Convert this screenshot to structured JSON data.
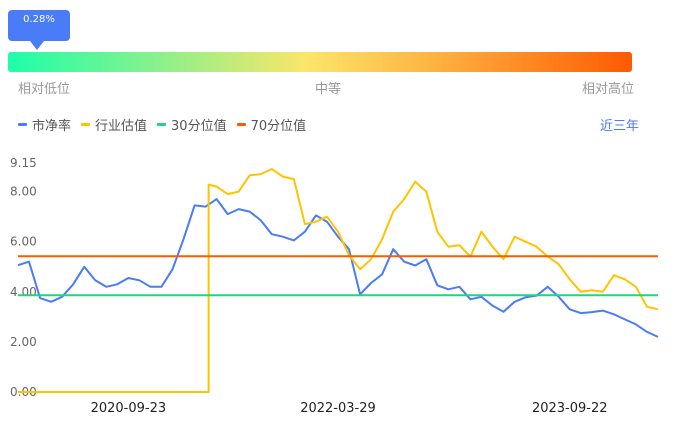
{
  "gauge": {
    "percentile_label": "0.28%",
    "percentile": 0.28,
    "low_label": "相对低位",
    "mid_label": "中等",
    "high_label": "相对高位"
  },
  "legend": [
    {
      "label": "市净率",
      "color": "#4a7cf7"
    },
    {
      "label": "行业估值",
      "color": "#ffc400"
    },
    {
      "label": "30分位值",
      "color": "#1fd67f"
    },
    {
      "label": "70分位值",
      "color": "#ff5a00"
    }
  ],
  "period_button": "近三年",
  "chart_data": {
    "type": "line",
    "title": "",
    "xlabel": "",
    "ylabel": "",
    "ylim": [
      0,
      9.15
    ],
    "y_ticks": [
      "0.00",
      "2.00",
      "4.00",
      "6.00",
      "8.00",
      "9.15"
    ],
    "y_tick_values": [
      0,
      2,
      4,
      6,
      8,
      9.15
    ],
    "x_ticks": [
      {
        "label": "2020-09-23",
        "index": 10
      },
      {
        "label": "2022-03-29",
        "index": 29
      },
      {
        "label": "2023-09-22",
        "index": 50
      }
    ],
    "grid": false,
    "legend_position": "top-left",
    "series": [
      {
        "name": "市净率",
        "color": "#4a7cf7",
        "values": [
          5.06,
          5.2,
          3.75,
          3.6,
          3.8,
          4.3,
          5.0,
          4.46,
          4.2,
          4.3,
          4.55,
          4.46,
          4.2,
          4.2,
          4.9,
          6.1,
          7.45,
          7.4,
          7.7,
          7.1,
          7.3,
          7.2,
          6.85,
          6.3,
          6.2,
          6.05,
          6.4,
          7.05,
          6.8,
          6.2,
          5.7,
          3.9,
          4.35,
          4.7,
          5.7,
          5.2,
          5.05,
          5.3,
          4.26,
          4.1,
          4.2,
          3.7,
          3.8,
          3.45,
          3.2,
          3.6,
          3.78,
          3.85,
          4.2,
          3.8,
          3.3,
          3.15,
          3.19,
          3.25,
          3.1,
          2.9,
          2.7,
          2.4,
          2.2
        ]
      },
      {
        "name": "行业估值",
        "color": "#ffc400",
        "values": [
          0,
          0,
          0,
          0,
          0,
          0,
          0,
          0,
          0,
          0,
          0,
          0,
          0,
          0,
          0,
          0,
          0,
          0,
          8.2,
          7.9,
          8.0,
          8.65,
          8.7,
          8.9,
          8.6,
          8.5,
          6.7,
          6.8,
          7.0,
          6.4,
          5.46,
          4.9,
          5.3,
          6.1,
          7.2,
          7.7,
          8.4,
          8.0,
          6.4,
          5.8,
          5.86,
          5.4,
          6.4,
          5.8,
          5.3,
          6.2,
          6.0,
          5.8,
          5.4,
          5.1,
          4.5,
          4.0,
          4.06,
          4.0,
          4.66,
          4.5,
          4.2,
          3.4,
          3.3
        ]
      },
      {
        "name": "30分位值",
        "color": "#1fd67f",
        "constant": 3.86
      },
      {
        "name": "70分位值",
        "color": "#ff5a00",
        "constant": 5.42
      }
    ]
  }
}
